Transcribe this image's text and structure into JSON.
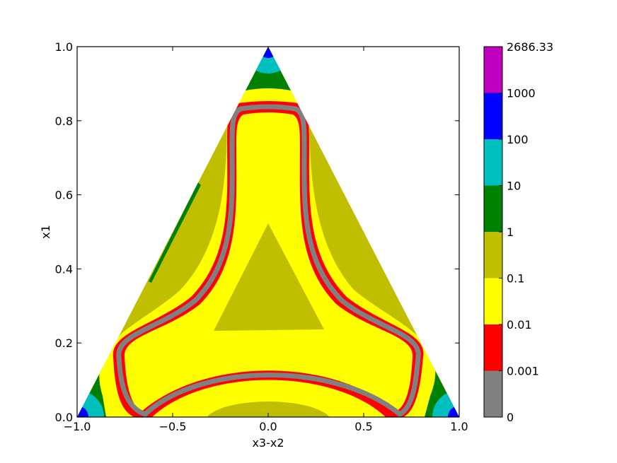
{
  "chart_data": {
    "type": "heatmap",
    "subtype": "filled ternary contour",
    "xlabel": "x3-x2",
    "ylabel": "x1",
    "xlim": [
      -1.0,
      1.0
    ],
    "ylim": [
      0.0,
      1.0
    ],
    "x_ticks": [
      "−1.0",
      "−0.5",
      "0.0",
      "0.5",
      "1.0"
    ],
    "x_tick_values": [
      -1.0,
      -0.5,
      0.0,
      0.5,
      1.0
    ],
    "y_ticks": [
      "0.0",
      "0.2",
      "0.4",
      "0.6",
      "0.8",
      "1.0"
    ],
    "y_tick_values": [
      0.0,
      0.2,
      0.4,
      0.6,
      0.8,
      1.0
    ],
    "colorbar": {
      "boundaries": [
        "0",
        "0.001",
        "0.01",
        "0.1",
        "1",
        "10",
        "100",
        "1000",
        "2686.33"
      ],
      "levels": [
        {
          "from": "0",
          "to": "0.001",
          "color": "#808080"
        },
        {
          "from": "0.001",
          "to": "0.01",
          "color": "#ff0000"
        },
        {
          "from": "0.01",
          "to": "0.1",
          "color": "#ffff00"
        },
        {
          "from": "0.1",
          "to": "1",
          "color": "#bfbf00"
        },
        {
          "from": "1",
          "to": "10",
          "color": "#008000"
        },
        {
          "from": "10",
          "to": "100",
          "color": "#00bfbf"
        },
        {
          "from": "100",
          "to": "1000",
          "color": "#0000ff"
        },
        {
          "from": "1000",
          "to": "2686.33",
          "color": "#bf00bf"
        }
      ]
    },
    "grid": false
  }
}
